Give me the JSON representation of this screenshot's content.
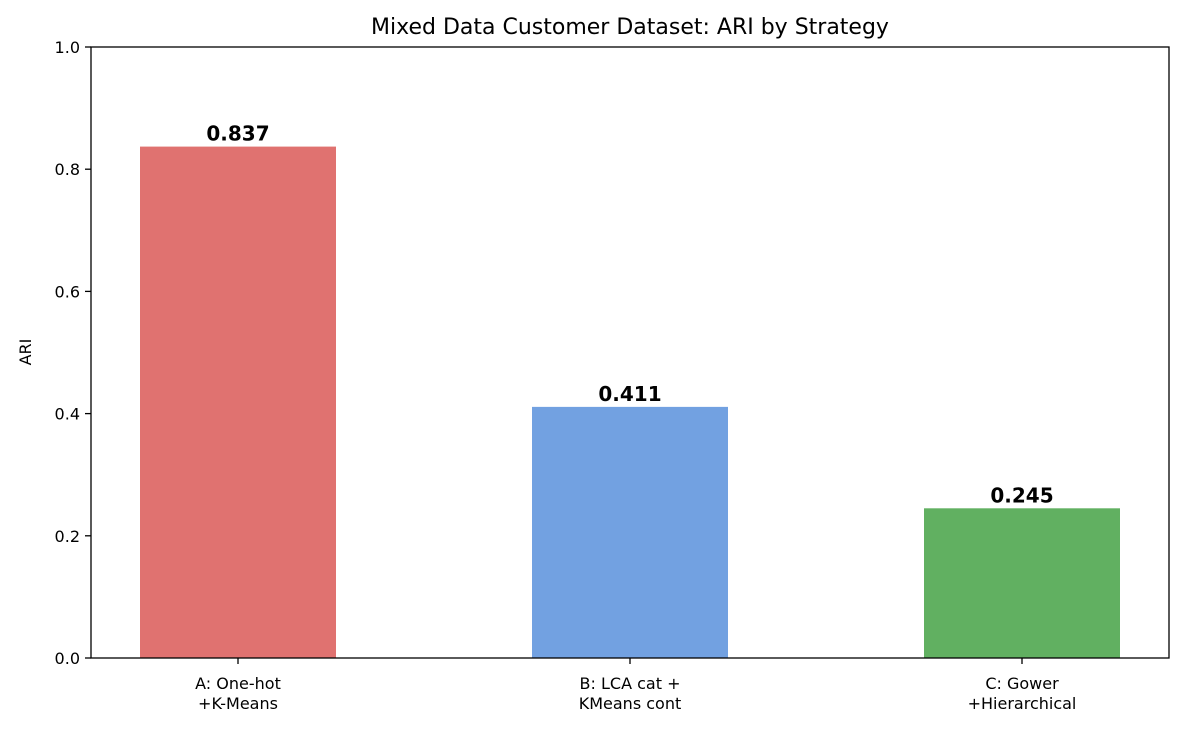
{
  "chart_data": {
    "type": "bar",
    "title": "Mixed Data Customer Dataset: ARI by Strategy",
    "xlabel": "",
    "ylabel": "ARI",
    "ylim": [
      0,
      1
    ],
    "yticks": [
      "0.0",
      "0.2",
      "0.4",
      "0.6",
      "0.8",
      "1.0"
    ],
    "categories": [
      [
        "A: One-hot",
        "+K-Means"
      ],
      [
        "B: LCA cat +",
        "KMeans cont"
      ],
      [
        "C: Gower",
        "+Hierarchical"
      ]
    ],
    "values": [
      0.837,
      0.411,
      0.245
    ],
    "data_labels": [
      "0.837",
      "0.411",
      "0.245"
    ],
    "colors": [
      "#e07270",
      "#72a1e1",
      "#61b061"
    ],
    "grid": false,
    "legend": "none"
  }
}
